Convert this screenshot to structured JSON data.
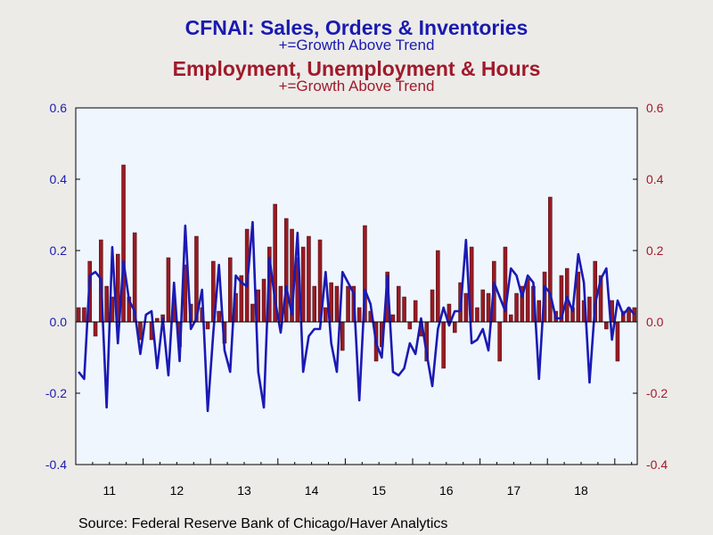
{
  "titles": {
    "line1": "CFNAI: Sales, Orders & Inventories",
    "line2": "+=Growth Above Trend",
    "line3": "Employment, Unemployment & Hours",
    "line4": "+=Growth Above Trend"
  },
  "source": "Source:  Federal Reserve Bank of Chicago/Haver Analytics",
  "colors": {
    "line": "#1a1ab4",
    "bar": "#9a1a22",
    "left_axis": "#1a1ab0",
    "right_axis": "#a01a2a",
    "plot_bg": "#f0f6fe"
  },
  "chart_data": {
    "type": "bar",
    "x_start": "2011-01",
    "x_end": "2019-04",
    "x_tick_labels": [
      "11",
      "12",
      "13",
      "14",
      "15",
      "16",
      "17",
      "18"
    ],
    "ylim": [
      -0.4,
      0.6
    ],
    "y_ticks": [
      "-0.4",
      "-0.2",
      "0.0",
      "0.2",
      "0.4",
      "0.6"
    ],
    "series": [
      {
        "name": "Employment, Unemployment & Hours",
        "type": "bar",
        "axis": "right",
        "values": [
          0.04,
          0.04,
          0.17,
          -0.04,
          0.23,
          0.1,
          0.07,
          0.19,
          0.44,
          0.07,
          0.25,
          -0.05,
          0.0,
          -0.05,
          0.01,
          0.02,
          0.18,
          0.07,
          -0.07,
          0.16,
          0.05,
          0.24,
          0.04,
          -0.02,
          0.17,
          0.03,
          -0.06,
          0.18,
          0.08,
          0.13,
          0.26,
          0.05,
          0.09,
          0.12,
          0.21,
          0.33,
          0.1,
          0.29,
          0.26,
          0.18,
          0.21,
          0.24,
          0.1,
          0.23,
          0.04,
          0.11,
          0.1,
          -0.08,
          0.1,
          0.1,
          0.04,
          0.27,
          0.03,
          -0.11,
          -0.07,
          0.14,
          0.02,
          0.1,
          0.07,
          -0.02,
          0.06,
          -0.04,
          -0.11,
          0.09,
          0.2,
          -0.13,
          0.05,
          -0.03,
          0.11,
          0.08,
          0.21,
          0.04,
          0.09,
          0.08,
          0.17,
          -0.11,
          0.21,
          0.02,
          0.08,
          0.1,
          0.12,
          0.1,
          0.06,
          0.14,
          0.35,
          0.03,
          0.13,
          0.15,
          0.04,
          0.14,
          0.06,
          0.07,
          0.17,
          0.13,
          -0.02,
          0.06,
          -0.11,
          0.03,
          0.04,
          0.04
        ]
      },
      {
        "name": "Sales, Orders & Inventories",
        "type": "line",
        "axis": "left",
        "values": [
          -0.14,
          -0.16,
          0.13,
          0.14,
          0.12,
          -0.24,
          0.21,
          -0.06,
          0.17,
          0.06,
          0.03,
          -0.09,
          0.02,
          0.03,
          -0.13,
          0.01,
          -0.15,
          0.11,
          -0.11,
          0.27,
          -0.02,
          0.01,
          0.09,
          -0.25,
          -0.03,
          0.16,
          -0.08,
          -0.14,
          0.13,
          0.11,
          0.1,
          0.28,
          -0.14,
          -0.24,
          0.18,
          0.06,
          -0.03,
          0.1,
          0.02,
          0.25,
          -0.14,
          -0.04,
          -0.02,
          -0.02,
          0.14,
          -0.06,
          -0.14,
          0.14,
          0.11,
          0.08,
          -0.22,
          0.09,
          0.05,
          -0.06,
          -0.1,
          0.13,
          -0.14,
          -0.15,
          -0.13,
          -0.06,
          -0.09,
          0.01,
          -0.09,
          -0.18,
          -0.02,
          0.04,
          -0.01,
          0.03,
          0.03,
          0.23,
          -0.06,
          -0.05,
          -0.02,
          -0.08,
          0.11,
          0.07,
          0.03,
          0.15,
          0.13,
          0.07,
          0.13,
          0.11,
          -0.16,
          0.1,
          0.08,
          0.01,
          0.01,
          0.07,
          0.03,
          0.19,
          0.11,
          -0.17,
          0.05,
          0.12,
          0.15,
          -0.05,
          0.06,
          0.02,
          0.04,
          0.02
        ]
      }
    ]
  }
}
